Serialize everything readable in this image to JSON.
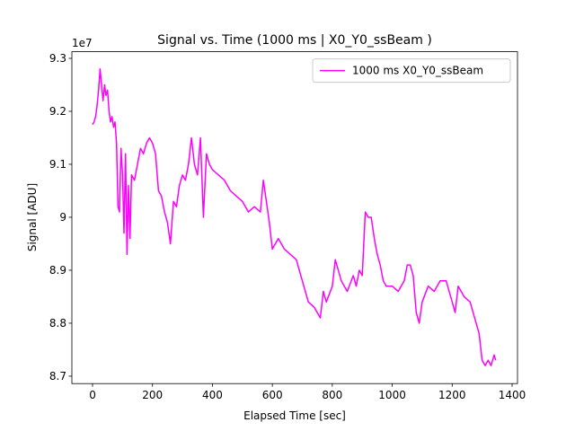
{
  "chart_data": {
    "type": "line",
    "title": "Signal vs. Time (1000 ms | X0_Y0_ssBeam )",
    "x_label": "Elapsed Time [sec]",
    "y_label": "Signal [ADU]",
    "y_offset_label": "1e7",
    "x": [
      0,
      5,
      10,
      15,
      20,
      25,
      30,
      35,
      40,
      45,
      50,
      55,
      60,
      65,
      70,
      75,
      80,
      85,
      90,
      95,
      100,
      105,
      110,
      115,
      120,
      125,
      130,
      140,
      150,
      160,
      170,
      180,
      190,
      200,
      210,
      220,
      230,
      240,
      250,
      260,
      270,
      280,
      290,
      300,
      310,
      320,
      330,
      340,
      350,
      360,
      370,
      380,
      390,
      400,
      420,
      440,
      460,
      480,
      500,
      520,
      540,
      560,
      570,
      580,
      590,
      600,
      620,
      640,
      660,
      680,
      700,
      720,
      740,
      760,
      770,
      780,
      800,
      810,
      830,
      850,
      870,
      880,
      890,
      900,
      910,
      920,
      930,
      940,
      950,
      960,
      970,
      980,
      1000,
      1020,
      1040,
      1050,
      1060,
      1070,
      1080,
      1090,
      1100,
      1120,
      1140,
      1160,
      1180,
      1200,
      1210,
      1220,
      1240,
      1260,
      1270,
      1280,
      1290,
      1300,
      1310,
      1320,
      1330,
      1340,
      1345
    ],
    "series": [
      {
        "name": "1000 ms X0_Y0_ssBeam",
        "color": "#ff00ff",
        "values": [
          9.175,
          9.18,
          9.19,
          9.21,
          9.24,
          9.28,
          9.25,
          9.22,
          9.25,
          9.23,
          9.24,
          9.2,
          9.18,
          9.19,
          9.17,
          9.18,
          9.14,
          9.02,
          9.01,
          9.13,
          9.08,
          8.97,
          9.12,
          8.93,
          9.06,
          8.96,
          9.08,
          9.07,
          9.1,
          9.13,
          9.12,
          9.14,
          9.15,
          9.14,
          9.12,
          9.05,
          9.04,
          9.01,
          8.99,
          8.95,
          9.03,
          9.02,
          9.06,
          9.08,
          9.07,
          9.1,
          9.15,
          9.1,
          9.08,
          9.15,
          9.0,
          9.12,
          9.1,
          9.09,
          9.08,
          9.07,
          9.05,
          9.04,
          9.03,
          9.01,
          9.02,
          9.01,
          9.07,
          9.03,
          8.99,
          8.94,
          8.96,
          8.94,
          8.93,
          8.92,
          8.88,
          8.84,
          8.83,
          8.81,
          8.86,
          8.84,
          8.87,
          8.92,
          8.88,
          8.86,
          8.89,
          8.87,
          8.9,
          8.89,
          9.01,
          9.0,
          9.0,
          8.96,
          8.93,
          8.91,
          8.88,
          8.87,
          8.87,
          8.86,
          8.88,
          8.91,
          8.91,
          8.89,
          8.82,
          8.8,
          8.84,
          8.87,
          8.86,
          8.88,
          8.88,
          8.84,
          8.82,
          8.87,
          8.85,
          8.84,
          8.82,
          8.8,
          8.78,
          8.73,
          8.72,
          8.73,
          8.72,
          8.74,
          8.73
        ]
      }
    ],
    "xlim": [
      -69,
      1418
    ],
    "ylim": [
      8.686,
      9.3125
    ],
    "xticks": [
      0,
      200,
      400,
      600,
      800,
      1000,
      1200,
      1400
    ],
    "yticks": [
      8.7,
      8.8,
      8.9,
      9.0,
      9.1,
      9.2,
      9.3
    ],
    "legend": "upper right"
  }
}
